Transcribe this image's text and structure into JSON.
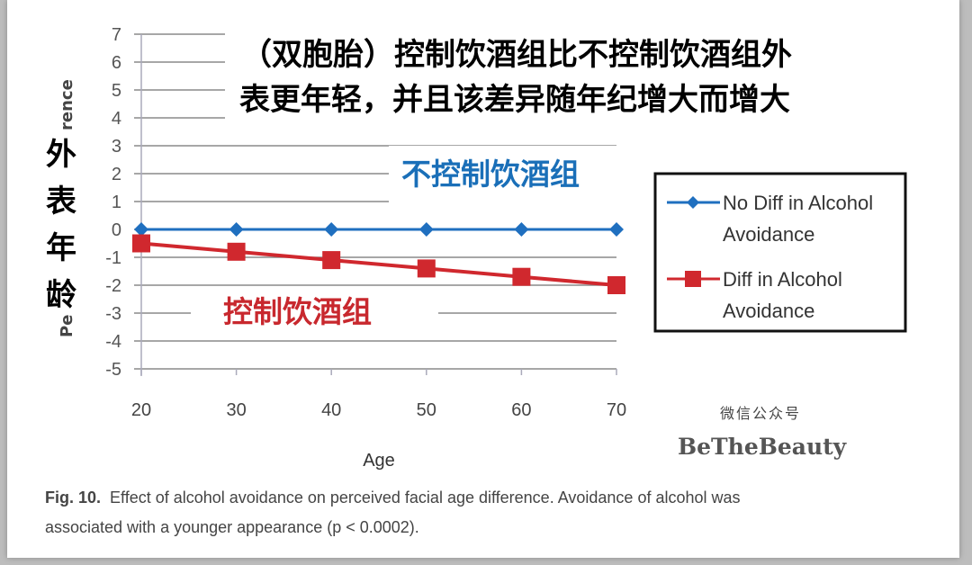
{
  "chart_data": {
    "type": "line",
    "x": [
      20,
      30,
      40,
      50,
      60,
      70
    ],
    "xlabel": "Age",
    "ylabel_fragments": [
      "Pe",
      "rence"
    ],
    "ylim": [
      -5,
      7
    ],
    "yticks": [
      7,
      6,
      5,
      4,
      3,
      2,
      1,
      0,
      -1,
      -2,
      -3,
      -4,
      -5
    ],
    "grid": true,
    "legend_position": "right",
    "series": [
      {
        "name": "No Diff in Alcohol Avoidance",
        "name_lines": [
          "No Diff in Alcohol",
          "Avoidance"
        ],
        "marker": "diamond",
        "color": "#1f6fbf",
        "values": [
          0,
          0,
          0,
          0,
          0,
          0
        ]
      },
      {
        "name": "Diff in Alcohol Avoidance",
        "name_lines": [
          "Diff in Alcohol",
          "Avoidance"
        ],
        "marker": "square",
        "color": "#d0282e",
        "values": [
          -0.5,
          -0.8,
          -1.1,
          -1.4,
          -1.7,
          -2.0
        ]
      }
    ]
  },
  "annotations": {
    "title_line1": "（双胞胎）控制饮酒组比不控制饮酒组外",
    "title_line2": "表更年轻，并且该差异随年纪增大而增大",
    "ylabel_cn": [
      "外",
      "表",
      "年",
      "龄"
    ],
    "blue_label": "不控制饮酒组",
    "red_label": "控制饮酒组"
  },
  "caption": {
    "fig": "Fig. 10.",
    "line1": "Effect of alcohol avoidance on perceived facial age difference. Avoidance of alcohol was",
    "line2": "associated with a younger appearance (p < 0.0002)."
  },
  "watermark": {
    "line1": "微信公众号",
    "line2": "BeTheBeauty"
  }
}
